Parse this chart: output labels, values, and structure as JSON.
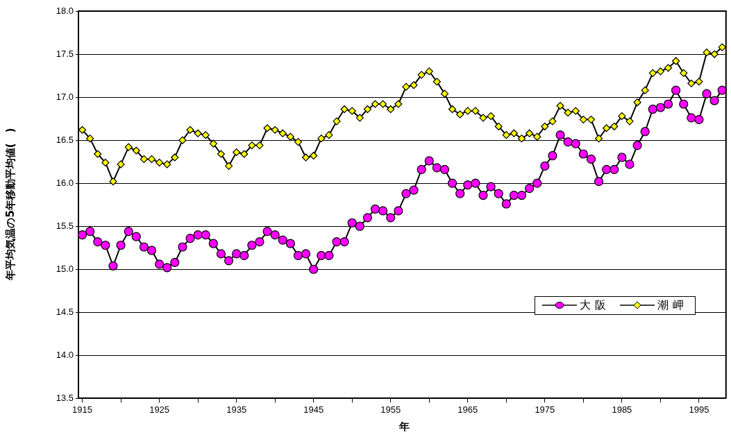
{
  "chart_data": {
    "type": "line",
    "xlabel": "年",
    "ylabel": "年平均気温の5年移動平均値(　)",
    "categories": [
      "1915",
      null,
      null,
      null,
      null,
      null,
      null,
      null,
      null,
      null,
      "1925",
      null,
      null,
      null,
      null,
      null,
      null,
      null,
      null,
      null,
      "1935",
      null,
      null,
      null,
      null,
      null,
      null,
      null,
      null,
      null,
      "1945",
      null,
      null,
      null,
      null,
      null,
      null,
      null,
      null,
      null,
      "1955",
      null,
      null,
      null,
      null,
      null,
      null,
      null,
      null,
      null,
      "1965",
      null,
      null,
      null,
      null,
      null,
      null,
      null,
      null,
      null,
      "1975",
      null,
      null,
      null,
      null,
      null,
      null,
      null,
      null,
      null,
      "1985",
      null,
      null,
      null,
      null,
      null,
      null,
      null,
      null,
      null,
      "1995",
      null,
      null,
      null
    ],
    "ylim": [
      13.5,
      18.0
    ],
    "yticks": [
      {
        "value": 13.5,
        "label": "13.5"
      },
      {
        "value": 14,
        "label": "14.0"
      },
      {
        "value": 14.5,
        "label": "14.5"
      },
      {
        "value": 15,
        "label": "15.0"
      },
      {
        "value": 15.5,
        "label": "15.5"
      },
      {
        "value": 16,
        "label": "16.0"
      },
      {
        "value": 16.5,
        "label": "16.5"
      },
      {
        "value": 17,
        "label": "17.0"
      },
      {
        "value": 17.5,
        "label": "17.5"
      },
      {
        "value": 18,
        "label": "18.0"
      }
    ],
    "grid": "y",
    "legend": "right",
    "line_style": "solid",
    "series": [
      {
        "name": "大阪",
        "color": "#ff00ff",
        "marker": "circle",
        "values": [
          15.4,
          15.44,
          15.32,
          15.28,
          15.04,
          15.28,
          15.44,
          15.38,
          15.26,
          15.22,
          15.06,
          15.02,
          15.08,
          15.26,
          15.36,
          15.4,
          15.4,
          15.3,
          15.18,
          15.1,
          15.18,
          15.16,
          15.28,
          15.32,
          15.44,
          15.4,
          15.34,
          15.3,
          15.16,
          15.18,
          15.0,
          15.16,
          15.16,
          15.32,
          15.32,
          15.54,
          15.5,
          15.6,
          15.7,
          15.68,
          15.6,
          15.68,
          15.88,
          15.92,
          16.16,
          16.26,
          16.18,
          16.16,
          16.0,
          15.88,
          15.98,
          16.0,
          15.86,
          15.96,
          15.88,
          15.76,
          15.86,
          15.86,
          15.94,
          16.0,
          16.2,
          16.32,
          16.56,
          16.48,
          16.46,
          16.34,
          16.28,
          16.02,
          16.16,
          16.16,
          16.3,
          16.22,
          16.44,
          16.6,
          16.86,
          16.88,
          16.92,
          17.08,
          16.92,
          16.76,
          16.74,
          17.04,
          16.96,
          17.08
        ]
      },
      {
        "name": "潮岬",
        "color": "#ffff00",
        "marker": "diamond",
        "values": [
          16.62,
          16.52,
          16.34,
          16.24,
          16.02,
          16.22,
          16.42,
          16.38,
          16.28,
          16.28,
          16.24,
          16.22,
          16.3,
          16.5,
          16.62,
          16.58,
          16.56,
          16.46,
          16.34,
          16.2,
          16.36,
          16.34,
          16.44,
          16.44,
          16.64,
          16.62,
          16.58,
          16.54,
          16.48,
          16.3,
          16.32,
          16.52,
          16.56,
          16.72,
          16.86,
          16.84,
          16.76,
          16.86,
          16.92,
          16.92,
          16.86,
          16.92,
          17.12,
          17.14,
          17.26,
          17.3,
          17.18,
          17.04,
          16.86,
          16.8,
          16.84,
          16.84,
          16.76,
          16.78,
          16.66,
          16.56,
          16.58,
          16.52,
          16.58,
          16.54,
          16.66,
          16.72,
          16.9,
          16.82,
          16.84,
          16.74,
          16.74,
          16.52,
          16.64,
          16.66,
          16.78,
          16.72,
          16.94,
          17.08,
          17.28,
          17.3,
          17.34,
          17.42,
          17.28,
          17.16,
          17.18,
          17.52,
          17.5,
          17.58
        ]
      }
    ]
  }
}
